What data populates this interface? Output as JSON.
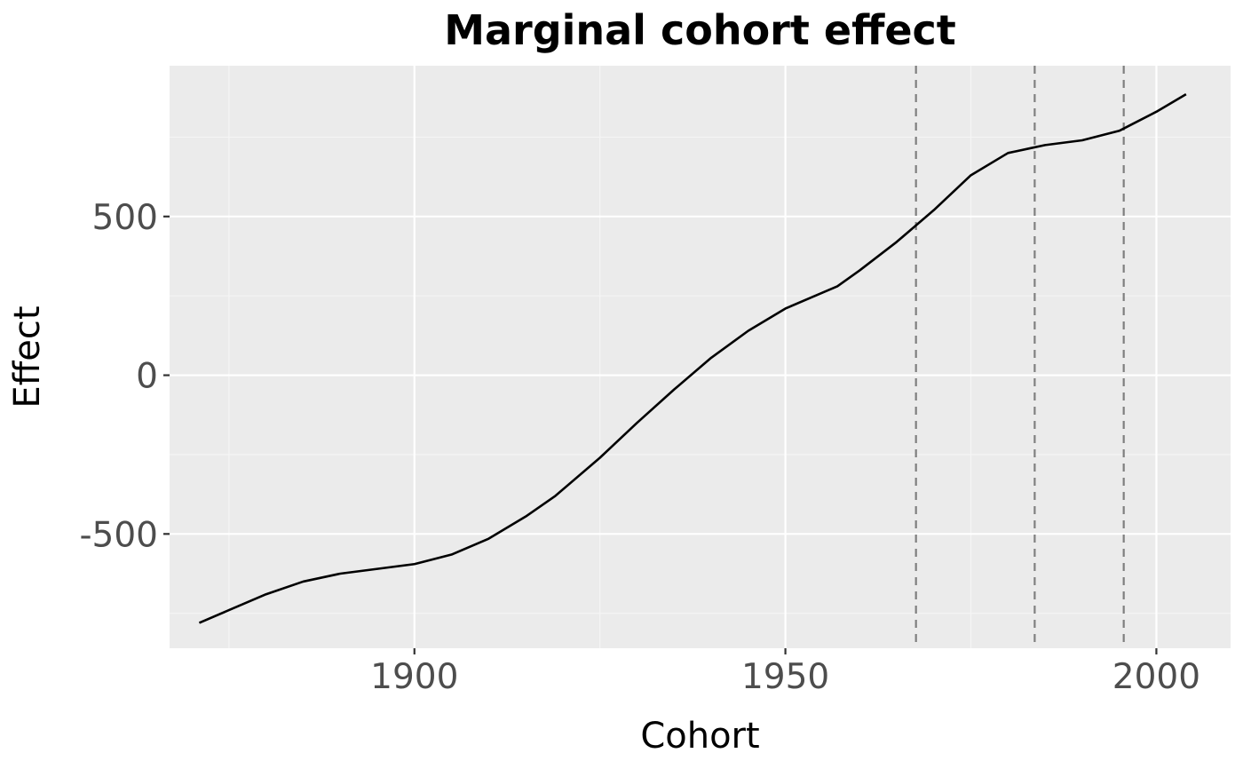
{
  "chart_data": {
    "type": "line",
    "title": "Marginal cohort effect",
    "xlabel": "Cohort",
    "ylabel": "Effect",
    "xlim": [
      1867,
      2010
    ],
    "ylim": [
      -860,
      975
    ],
    "x_ticks": [
      1900,
      1950,
      2000
    ],
    "x_tick_labels": [
      "1900",
      "1950",
      "2000"
    ],
    "y_ticks": [
      -500,
      0,
      500
    ],
    "y_tick_labels": [
      "-500",
      "0",
      "500"
    ],
    "grid": true,
    "legend": "none",
    "series": [
      {
        "x": [
          1871,
          1875,
          1880,
          1885,
          1890,
          1895,
          1900,
          1905,
          1910,
          1915,
          1919,
          1925,
          1930,
          1935,
          1940,
          1945,
          1950,
          1955,
          1957,
          1960,
          1965,
          1970,
          1975,
          1980,
          1983,
          1985,
          1990,
          1995,
          2000,
          2004
        ],
        "y": [
          -780,
          -740,
          -690,
          -650,
          -625,
          -610,
          -595,
          -565,
          -515,
          -445,
          -380,
          -260,
          -150,
          -45,
          55,
          140,
          210,
          260,
          280,
          330,
          420,
          520,
          630,
          700,
          715,
          725,
          740,
          770,
          830,
          885
        ]
      }
    ],
    "reference_lines": [
      {
        "axis": "x",
        "value": 1967.6,
        "style": "dashed"
      },
      {
        "axis": "x",
        "value": 1983.6,
        "style": "dashed"
      },
      {
        "axis": "x",
        "value": 1995.6,
        "style": "dashed"
      }
    ],
    "colors": {
      "panel_background": "#ebebeb",
      "grid_major": "#ffffff",
      "grid_minor": "#f5f5f5",
      "line": "#000000",
      "reference_line": "#7f7f7f",
      "tick_label": "#4d4d4d",
      "tick_mark": "#333333"
    }
  }
}
